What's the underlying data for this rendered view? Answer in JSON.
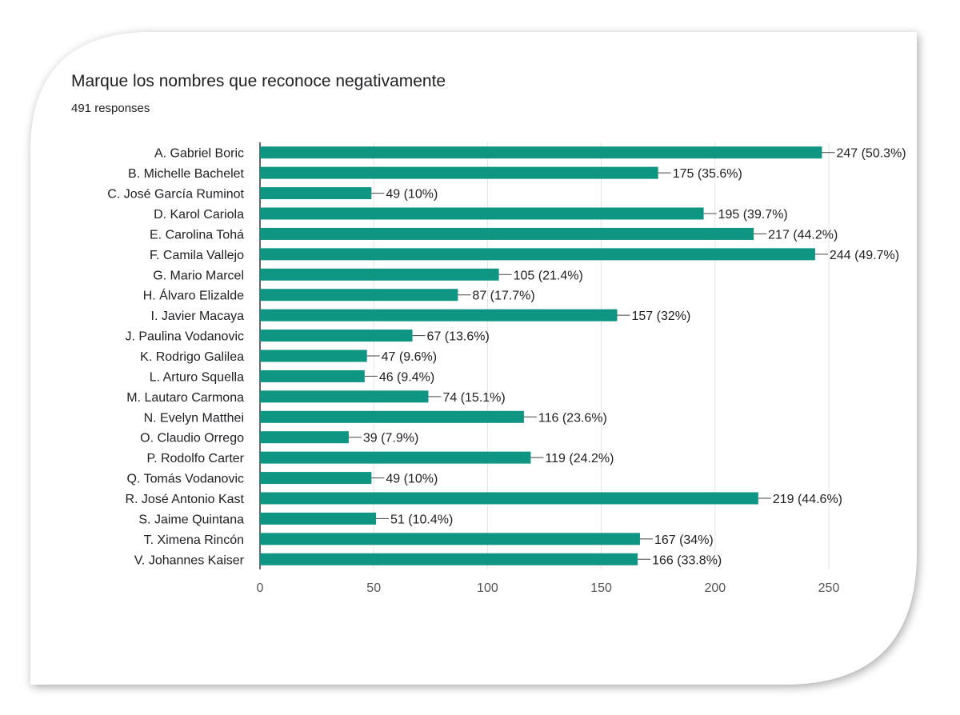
{
  "form": {
    "question": "Marque los nombres que reconoce negativamente",
    "responses": "491 responses"
  },
  "colors": {
    "bar": "#0f9683",
    "grid": "#e3e3e3",
    "axis": "#333333",
    "text": "#202124",
    "tick": "#555555"
  },
  "chart_data": {
    "type": "bar",
    "orientation": "horizontal",
    "title": "Marque los nombres que reconoce negativamente",
    "categories": [
      "A. Gabriel Boric",
      "B. Michelle Bachelet",
      "C. José García Ruminot",
      "D. Karol Cariola",
      "E. Carolina Tohá",
      "F. Camila Vallejo",
      "G. Mario Marcel",
      "H. Álvaro Elizalde",
      "I. Javier Macaya",
      "J. Paulina Vodanovic",
      "K. Rodrigo Galilea",
      "L. Arturo Squella",
      "M. Lautaro Carmona",
      "N. Evelyn Matthei",
      "O. Claudio Orrego",
      "P. Rodolfo Carter",
      "Q. Tomás Vodanovic",
      "R. José Antonio Kast",
      "S. Jaime Quintana",
      "T. Ximena Rincón",
      "V. Johannes Kaiser"
    ],
    "values": [
      247,
      175,
      49,
      195,
      217,
      244,
      105,
      87,
      157,
      67,
      47,
      46,
      74,
      116,
      39,
      119,
      49,
      219,
      51,
      167,
      166
    ],
    "labels": [
      "247 (50.3%)",
      "175 (35.6%)",
      "49 (10%)",
      "195 (39.7%)",
      "217 (44.2%)",
      "244 (49.7%)",
      "105 (21.4%)",
      "87 (17.7%)",
      "157 (32%)",
      "67 (13.6%)",
      "47 (9.6%)",
      "46 (9.4%)",
      "74 (15.1%)",
      "116 (23.6%)",
      "39 (7.9%)",
      "119 (24.2%)",
      "49 (10%)",
      "219 (44.6%)",
      "51 (10.4%)",
      "167 (34%)",
      "166 (33.8%)"
    ],
    "xticks": [
      0,
      50,
      100,
      150,
      200,
      250
    ],
    "xlim": [
      0,
      250
    ],
    "xlabel": "",
    "ylabel": "",
    "grid": true
  }
}
